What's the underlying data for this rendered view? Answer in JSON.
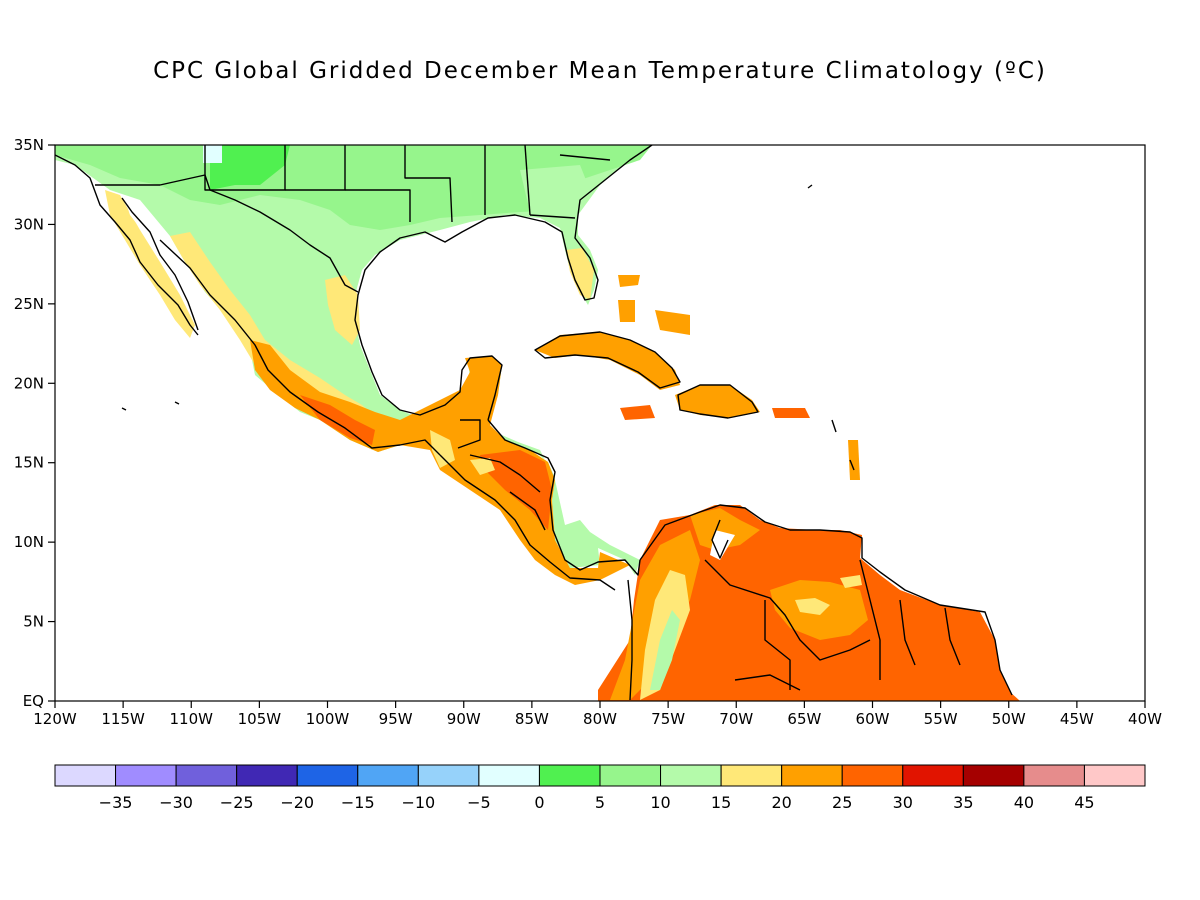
{
  "title": "CPC Global Gridded December Mean Temperature Climatology (ºC)",
  "map": {
    "lon_range": [
      -120,
      -40
    ],
    "lat_range": [
      0,
      35
    ],
    "lon_ticks": [
      {
        "value": -120,
        "label": "120W"
      },
      {
        "value": -115,
        "label": "115W"
      },
      {
        "value": -110,
        "label": "110W"
      },
      {
        "value": -105,
        "label": "105W"
      },
      {
        "value": -100,
        "label": "100W"
      },
      {
        "value": -95,
        "label": "95W"
      },
      {
        "value": -90,
        "label": "90W"
      },
      {
        "value": -85,
        "label": "85W"
      },
      {
        "value": -80,
        "label": "80W"
      },
      {
        "value": -75,
        "label": "75W"
      },
      {
        "value": -70,
        "label": "70W"
      },
      {
        "value": -65,
        "label": "65W"
      },
      {
        "value": -60,
        "label": "60W"
      },
      {
        "value": -55,
        "label": "55W"
      },
      {
        "value": -50,
        "label": "50W"
      },
      {
        "value": -45,
        "label": "45W"
      },
      {
        "value": -40,
        "label": "40W"
      }
    ],
    "lat_ticks": [
      {
        "value": 0,
        "label": "EQ"
      },
      {
        "value": 5,
        "label": "5N"
      },
      {
        "value": 10,
        "label": "10N"
      },
      {
        "value": 15,
        "label": "15N"
      },
      {
        "value": 20,
        "label": "20N"
      },
      {
        "value": 25,
        "label": "25N"
      },
      {
        "value": 30,
        "label": "30N"
      },
      {
        "value": 35,
        "label": "35N"
      }
    ]
  },
  "colorbar": {
    "colors": [
      "#dcd8ff",
      "#a08cff",
      "#7060dc",
      "#4028b4",
      "#1e64e6",
      "#50a5f5",
      "#96d2fa",
      "#e1ffff",
      "#50f050",
      "#96f58c",
      "#b4faaa",
      "#ffe878",
      "#ffa000",
      "#ff6400",
      "#e11400",
      "#a50000",
      "#e68c8c",
      "#ffc8c8"
    ],
    "labels": [
      "−35",
      "−30",
      "−25",
      "−20",
      "−15",
      "−10",
      "−5",
      "0",
      "5",
      "10",
      "15",
      "20",
      "25",
      "30",
      "35",
      "40",
      "45"
    ]
  }
}
